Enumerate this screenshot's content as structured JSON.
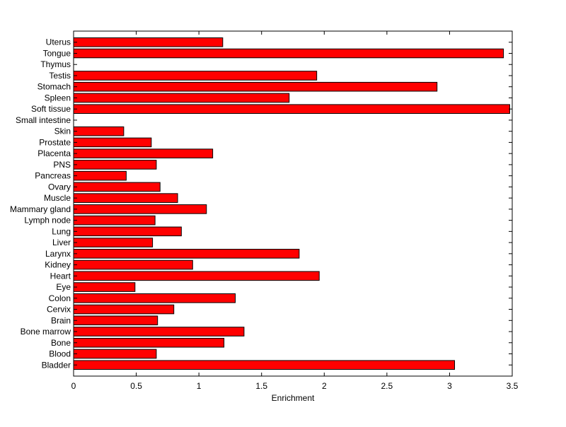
{
  "chart_data": {
    "type": "bar",
    "orientation": "horizontal",
    "categories": [
      "Bladder",
      "Blood",
      "Bone",
      "Bone marrow",
      "Brain",
      "Cervix",
      "Colon",
      "Eye",
      "Heart",
      "Kidney",
      "Larynx",
      "Liver",
      "Lung",
      "Lymph node",
      "Mammary gland",
      "Muscle",
      "Ovary",
      "Pancreas",
      "PNS",
      "Placenta",
      "Prostate",
      "Skin",
      "Small intestine",
      "Soft tissue",
      "Spleen",
      "Stomach",
      "Testis",
      "Thymus",
      "Tongue",
      "Uterus"
    ],
    "values": [
      3.04,
      0.66,
      1.2,
      1.36,
      0.67,
      0.8,
      1.29,
      0.49,
      1.96,
      0.95,
      1.8,
      0.63,
      0.86,
      0.65,
      1.06,
      0.83,
      0.69,
      0.42,
      0.66,
      1.11,
      0.62,
      0.4,
      0,
      3.48,
      1.72,
      2.9,
      1.94,
      0,
      3.43,
      1.19
    ],
    "bar_color": "#ff0000",
    "xlabel": "Enrichment",
    "ylabel": "",
    "xlim": [
      0,
      3.5
    ],
    "xticks": [
      "0",
      "0.5",
      "1",
      "1.5",
      "2",
      "2.5",
      "3",
      "3.5"
    ],
    "grid": false,
    "legend": "none"
  }
}
